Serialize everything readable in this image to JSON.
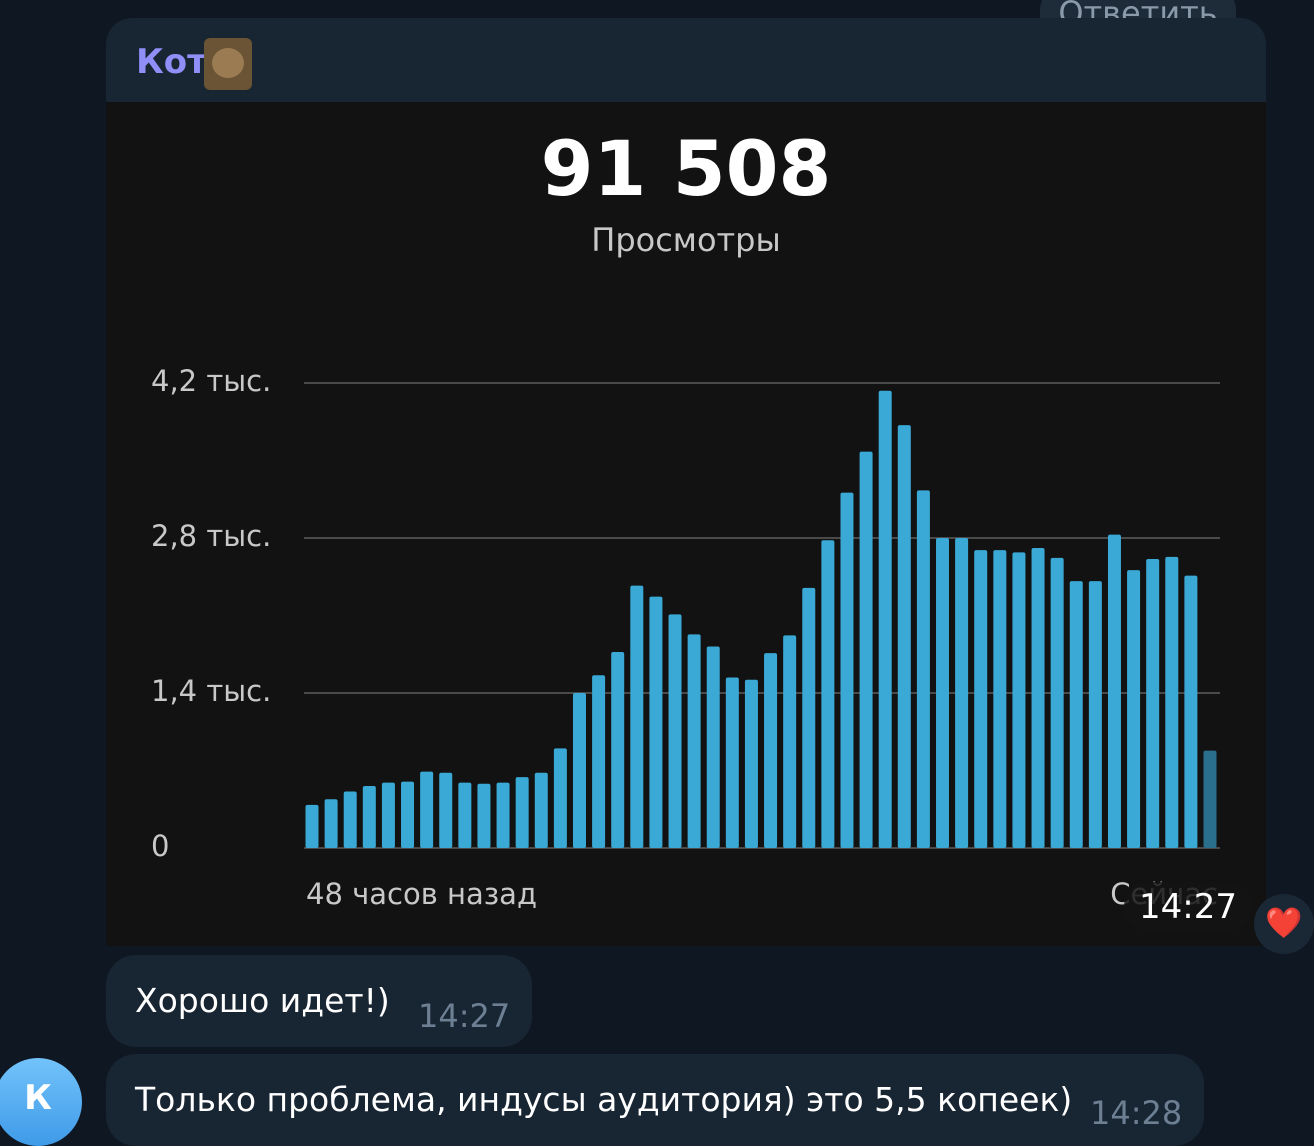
{
  "reply_button": "Ответить",
  "sender": "Кот",
  "chart_message_time": "14:27",
  "reaction": "❤️",
  "avatar_letter": "К",
  "messages": [
    {
      "text": "Хорошо идет!)",
      "time": "14:27"
    },
    {
      "text": "Только проблема, индусы аудитория) это 5,5 копеек)",
      "time": "14:28"
    }
  ],
  "chart_data": {
    "type": "bar",
    "title": "91 508",
    "subtitle": "Просмотры",
    "categories": [
      "48 часов назад",
      null,
      null,
      null,
      null,
      null,
      null,
      null,
      null,
      null,
      null,
      null,
      null,
      null,
      null,
      null,
      null,
      null,
      null,
      null,
      null,
      null,
      null,
      null,
      null,
      null,
      null,
      null,
      null,
      null,
      null,
      null,
      null,
      null,
      null,
      null,
      null,
      null,
      null,
      null,
      null,
      null,
      null,
      null,
      null,
      null,
      null,
      "Сейчас"
    ],
    "values": [
      390,
      440,
      510,
      560,
      590,
      600,
      690,
      680,
      590,
      580,
      590,
      640,
      680,
      900,
      1400,
      1560,
      1770,
      2370,
      2270,
      2110,
      1930,
      1820,
      1540,
      1520,
      1760,
      1920,
      2350,
      2780,
      3210,
      3580,
      4130,
      3820,
      3230,
      2800,
      2800,
      2690,
      2690,
      2670,
      2710,
      2620,
      2410,
      2410,
      2830,
      2510,
      2610,
      2630,
      2460,
      880
    ],
    "color": "#3aa9d6",
    "last_bar_color": "#2a6f8c",
    "ylim": [
      0,
      4200
    ],
    "yticks": [
      0,
      {
        "value": 1400,
        "label": "1,4 тыс."
      },
      {
        "value": 2800,
        "label": "2,8 тыс."
      },
      {
        "value": 4200,
        "label": "4,2 тыс."
      }
    ],
    "grid": true
  }
}
